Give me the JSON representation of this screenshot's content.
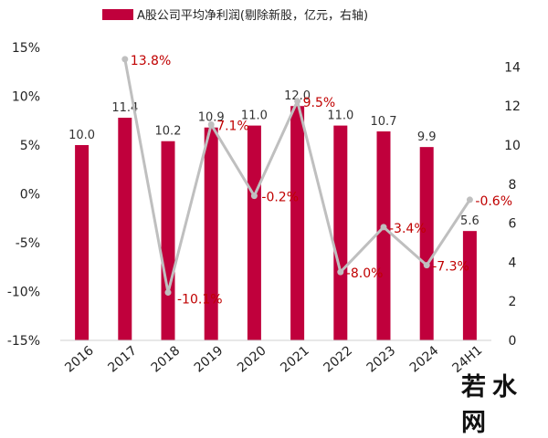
{
  "chart_data": {
    "type": "bar+line",
    "legend": {
      "label": "A股公司平均净利润(剔除新股，亿元，右轴)",
      "color": "#c0003c",
      "placement": "top"
    },
    "categories": [
      "2016",
      "2017",
      "2018",
      "2019",
      "2020",
      "2021",
      "2022",
      "2023",
      "2024",
      "24H1"
    ],
    "bar_series": {
      "name": "A股公司平均净利润(剔除新股，亿元，右轴)",
      "axis": "right",
      "values": [
        10.0,
        11.4,
        10.2,
        10.9,
        11.0,
        12.0,
        11.0,
        10.7,
        9.9,
        5.6
      ],
      "labels": [
        "10.0",
        "11.4",
        "10.2",
        "10.9",
        "11.0",
        "12.0",
        "11.0",
        "10.7",
        "9.9",
        "5.6"
      ],
      "color": "#c0003c"
    },
    "line_series": {
      "axis": "left",
      "values": [
        13.8,
        -10.1,
        7.1,
        -0.2,
        9.5,
        -8.0,
        -3.4,
        -7.3,
        -0.6
      ],
      "labels": [
        "13.8%",
        "-10.1%",
        "7.1%",
        "-0.2%",
        "9.5%",
        "-8.0%",
        "-3.4%",
        "-7.3%",
        "-0.6%"
      ],
      "category_start_index": 1,
      "color": "#bfbfbf",
      "label_color": "#c00000"
    },
    "left_axis": {
      "range": [
        -15,
        15
      ],
      "ticks": [
        15,
        10,
        5,
        0,
        -5,
        -10,
        -15
      ],
      "tick_labels": [
        "15%",
        "10%",
        "5%",
        "0%",
        "-5%",
        "-10%",
        "-15%"
      ]
    },
    "right_axis": {
      "range": [
        0,
        15
      ],
      "ticks": [
        14,
        12,
        10,
        8,
        6,
        4,
        2,
        0
      ],
      "tick_labels": [
        "14",
        "12",
        "10",
        "8",
        "6",
        "4",
        "2",
        "0"
      ]
    },
    "grid": false
  },
  "watermark": "若水网"
}
